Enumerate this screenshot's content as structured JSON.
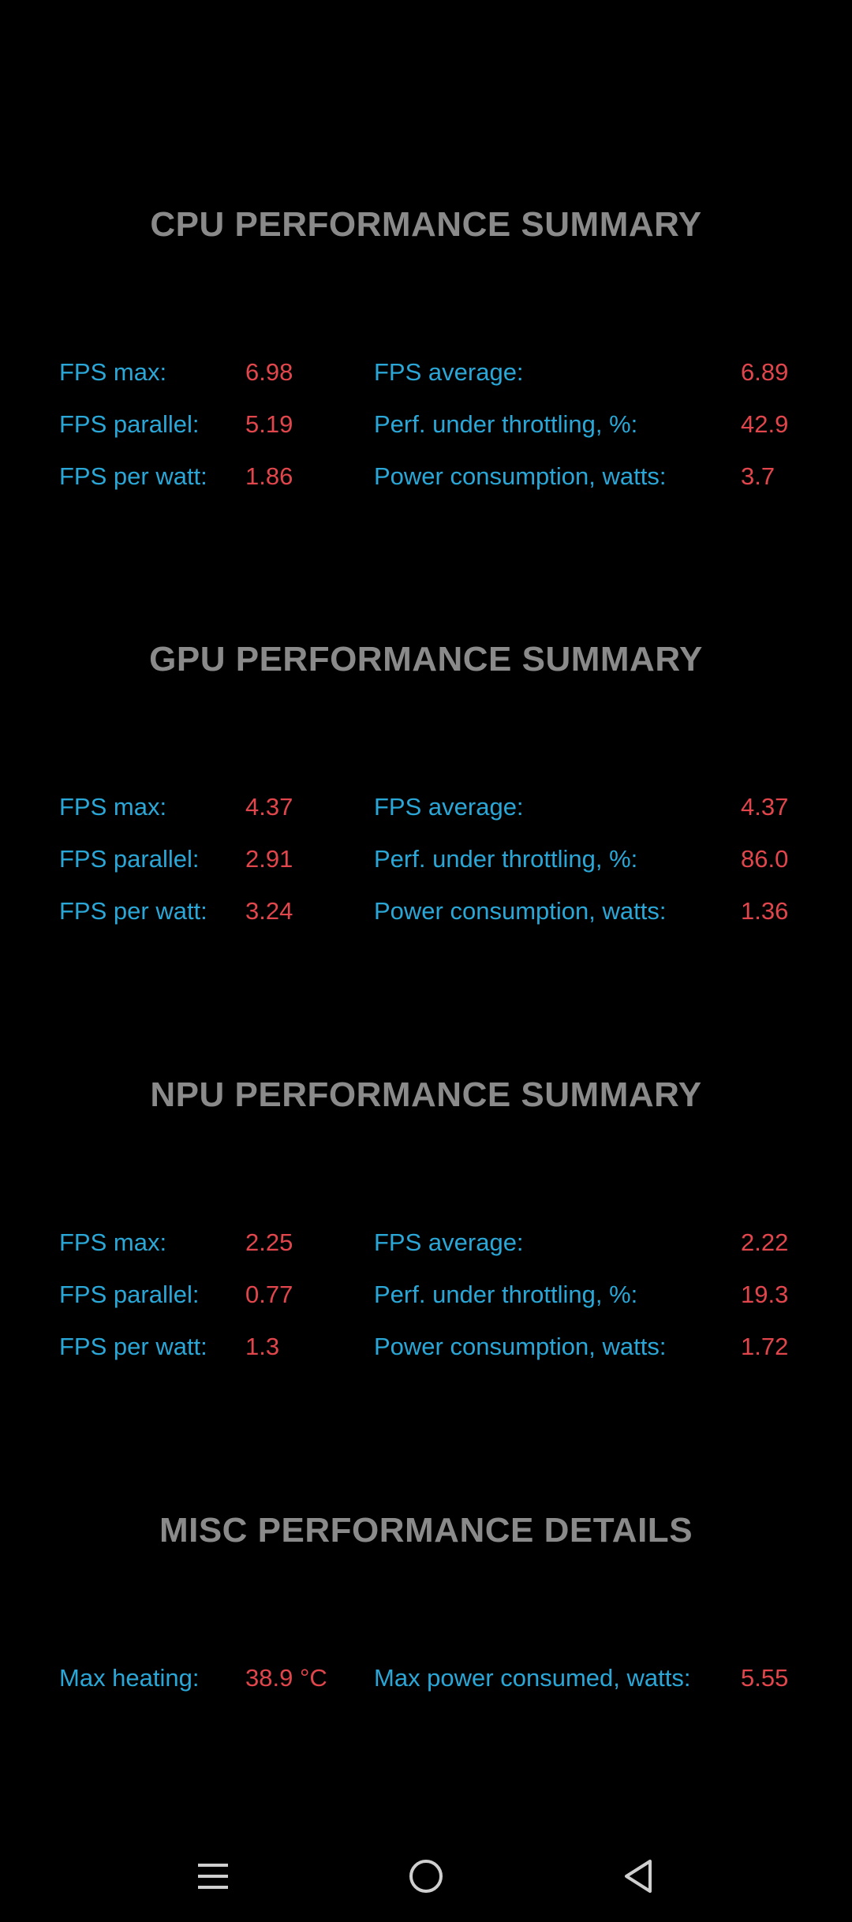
{
  "sections": [
    {
      "title": "CPU PERFORMANCE SUMMARY",
      "rows": [
        {
          "l1": "FPS max:",
          "v1": "6.98",
          "l2": "FPS average:",
          "v2": "6.89"
        },
        {
          "l1": "FPS parallel:",
          "v1": "5.19",
          "l2": "Perf. under throttling, %:",
          "v2": "42.9"
        },
        {
          "l1": "FPS per watt:",
          "v1": "1.86",
          "l2": "Power consumption, watts:",
          "v2": "3.7"
        }
      ]
    },
    {
      "title": "GPU PERFORMANCE SUMMARY",
      "rows": [
        {
          "l1": "FPS max:",
          "v1": "4.37",
          "l2": "FPS average:",
          "v2": "4.37"
        },
        {
          "l1": "FPS parallel:",
          "v1": "2.91",
          "l2": "Perf. under throttling, %:",
          "v2": "86.0"
        },
        {
          "l1": "FPS per watt:",
          "v1": "3.24",
          "l2": "Power consumption, watts:",
          "v2": "1.36"
        }
      ]
    },
    {
      "title": "NPU PERFORMANCE SUMMARY",
      "rows": [
        {
          "l1": "FPS max:",
          "v1": "2.25",
          "l2": "FPS average:",
          "v2": "2.22"
        },
        {
          "l1": "FPS parallel:",
          "v1": "0.77",
          "l2": "Perf. under throttling, %:",
          "v2": "19.3"
        },
        {
          "l1": "FPS per watt:",
          "v1": "1.3",
          "l2": "Power consumption, watts:",
          "v2": "1.72"
        }
      ]
    },
    {
      "title": "MISC PERFORMANCE DETAILS",
      "rows": [
        {
          "l1": "Max heating:",
          "v1": "38.9 °C",
          "l2": "Max power consumed, watts:",
          "v2": "5.55"
        }
      ]
    }
  ],
  "navbar": {
    "icons": [
      "menu-icon",
      "home-icon",
      "back-icon"
    ],
    "icon_color": "#cfcfcf"
  },
  "colors": {
    "background": "#000000",
    "title": "#8a8a8a",
    "label": "#2aa7d6",
    "value": "#e0464b"
  }
}
